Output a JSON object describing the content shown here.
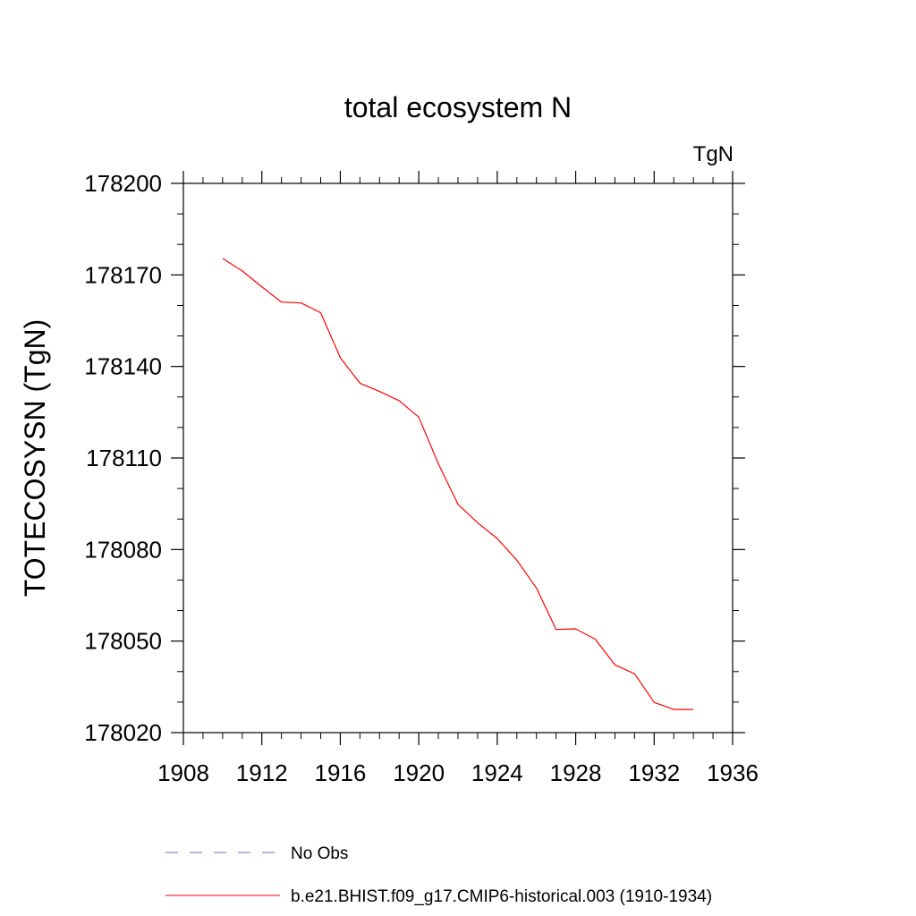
{
  "chart_data": {
    "type": "line",
    "title": "total ecosystem N",
    "units_label": "TgN",
    "xlabel": "",
    "ylabel": "TOTECOSYSN  (TgN)",
    "xlim": [
      1908,
      1936
    ],
    "ylim": [
      178020,
      178200
    ],
    "x_ticks": [
      1908,
      1912,
      1916,
      1920,
      1924,
      1928,
      1932,
      1936
    ],
    "y_ticks": [
      178020,
      178050,
      178080,
      178110,
      178140,
      178170,
      178200
    ],
    "x_minor_step": 1,
    "y_minor_step": 10,
    "grid": false,
    "legend_position": "bottom",
    "legend": [
      {
        "label": "No Obs",
        "color": "#7b68c8",
        "dash": "dashed"
      },
      {
        "label": "b.e21.BHIST.f09_g17.CMIP6-historical.003 (1910-1934)",
        "color": "#ff0000",
        "dash": "solid"
      }
    ],
    "series": [
      {
        "name": "b.e21.BHIST.f09_g17.CMIP6-historical.003 (1910-1934)",
        "color": "#ff0000",
        "x": [
          1910,
          1911,
          1912,
          1913,
          1914,
          1915,
          1916,
          1917,
          1918,
          1919,
          1920,
          1921,
          1922,
          1923,
          1924,
          1925,
          1926,
          1927,
          1928,
          1929,
          1930,
          1931,
          1932,
          1933,
          1934
        ],
        "values": [
          178175.4,
          178171.3,
          178166.1,
          178161.1,
          178160.8,
          178157.6,
          178142.9,
          178134.5,
          178131.8,
          178128.8,
          178123.4,
          178108.1,
          178094.8,
          178088.8,
          178083.6,
          178076.5,
          178067.4,
          178053.8,
          178054.0,
          178050.6,
          178042.2,
          178039.3,
          178029.9,
          178027.6,
          178027.6
        ]
      }
    ]
  }
}
